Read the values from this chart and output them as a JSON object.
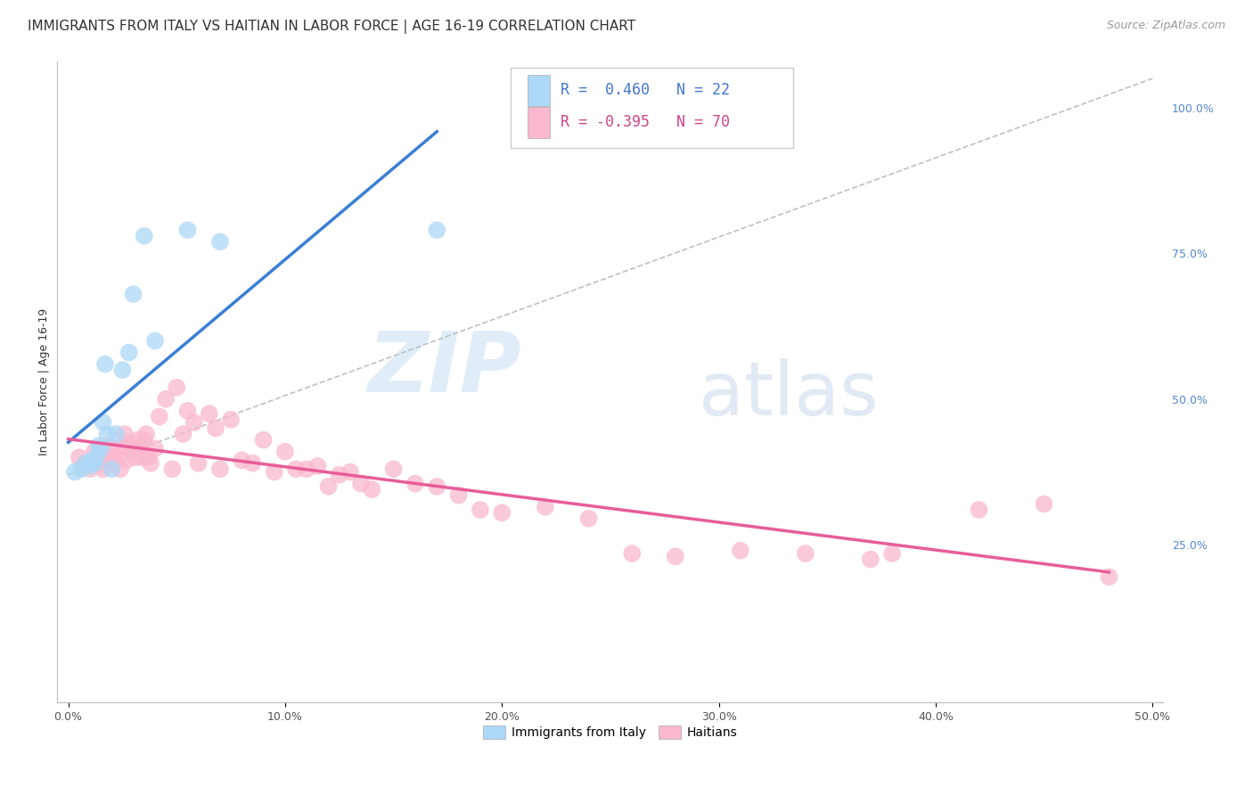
{
  "title": "IMMIGRANTS FROM ITALY VS HAITIAN IN LABOR FORCE | AGE 16-19 CORRELATION CHART",
  "source": "Source: ZipAtlas.com",
  "ylabel": "In Labor Force | Age 16-19",
  "watermark_zip": "ZIP",
  "watermark_atlas": "atlas",
  "x_tick_vals": [
    0.0,
    0.1,
    0.2,
    0.3,
    0.4,
    0.5
  ],
  "x_tick_labels": [
    "0.0%",
    "10.0%",
    "20.0%",
    "30.0%",
    "40.0%",
    "50.0%"
  ],
  "y_tick_vals_right": [
    0.25,
    0.5,
    0.75,
    1.0
  ],
  "y_tick_labels_right": [
    "25.0%",
    "50.0%",
    "75.0%",
    "100.0%"
  ],
  "xlim": [
    -0.005,
    0.505
  ],
  "ylim": [
    -0.02,
    1.08
  ],
  "italy_R": 0.46,
  "italy_N": 22,
  "haiti_R": -0.395,
  "haiti_N": 70,
  "italy_color": "#add8f7",
  "haiti_color": "#f9b8ce",
  "italy_line_color": "#3a7fd5",
  "haiti_line_color": "#e85d9a",
  "ref_line_color": "#c0c0c0",
  "background_color": "#ffffff",
  "grid_color": "#d8d8d8",
  "italy_scatter_x": [
    0.003,
    0.006,
    0.008,
    0.01,
    0.011,
    0.012,
    0.013,
    0.014,
    0.015,
    0.016,
    0.017,
    0.018,
    0.02,
    0.022,
    0.025,
    0.028,
    0.03,
    0.035,
    0.04,
    0.055,
    0.07,
    0.17
  ],
  "italy_scatter_y": [
    0.375,
    0.38,
    0.39,
    0.385,
    0.395,
    0.39,
    0.4,
    0.42,
    0.415,
    0.46,
    0.56,
    0.44,
    0.38,
    0.44,
    0.55,
    0.58,
    0.68,
    0.78,
    0.6,
    0.79,
    0.77,
    0.79
  ],
  "haiti_scatter_x": [
    0.005,
    0.008,
    0.01,
    0.012,
    0.014,
    0.015,
    0.016,
    0.017,
    0.018,
    0.02,
    0.021,
    0.022,
    0.023,
    0.024,
    0.025,
    0.026,
    0.027,
    0.028,
    0.03,
    0.031,
    0.032,
    0.033,
    0.034,
    0.035,
    0.036,
    0.037,
    0.038,
    0.04,
    0.042,
    0.045,
    0.048,
    0.05,
    0.053,
    0.055,
    0.058,
    0.06,
    0.065,
    0.068,
    0.07,
    0.075,
    0.08,
    0.085,
    0.09,
    0.095,
    0.1,
    0.105,
    0.11,
    0.115,
    0.12,
    0.125,
    0.13,
    0.135,
    0.14,
    0.15,
    0.16,
    0.17,
    0.18,
    0.19,
    0.2,
    0.22,
    0.24,
    0.26,
    0.28,
    0.31,
    0.34,
    0.37,
    0.38,
    0.42,
    0.45,
    0.48
  ],
  "haiti_scatter_y": [
    0.4,
    0.39,
    0.38,
    0.41,
    0.39,
    0.4,
    0.38,
    0.4,
    0.42,
    0.4,
    0.39,
    0.415,
    0.4,
    0.38,
    0.42,
    0.44,
    0.395,
    0.425,
    0.41,
    0.4,
    0.43,
    0.415,
    0.4,
    0.43,
    0.44,
    0.4,
    0.39,
    0.415,
    0.47,
    0.5,
    0.38,
    0.52,
    0.44,
    0.48,
    0.46,
    0.39,
    0.475,
    0.45,
    0.38,
    0.465,
    0.395,
    0.39,
    0.43,
    0.375,
    0.41,
    0.38,
    0.38,
    0.385,
    0.35,
    0.37,
    0.375,
    0.355,
    0.345,
    0.38,
    0.355,
    0.35,
    0.335,
    0.31,
    0.305,
    0.315,
    0.295,
    0.235,
    0.23,
    0.24,
    0.235,
    0.225,
    0.235,
    0.31,
    0.32,
    0.195
  ],
  "title_fontsize": 11,
  "label_fontsize": 9,
  "tick_fontsize": 9,
  "legend_fontsize": 12,
  "source_fontsize": 9
}
